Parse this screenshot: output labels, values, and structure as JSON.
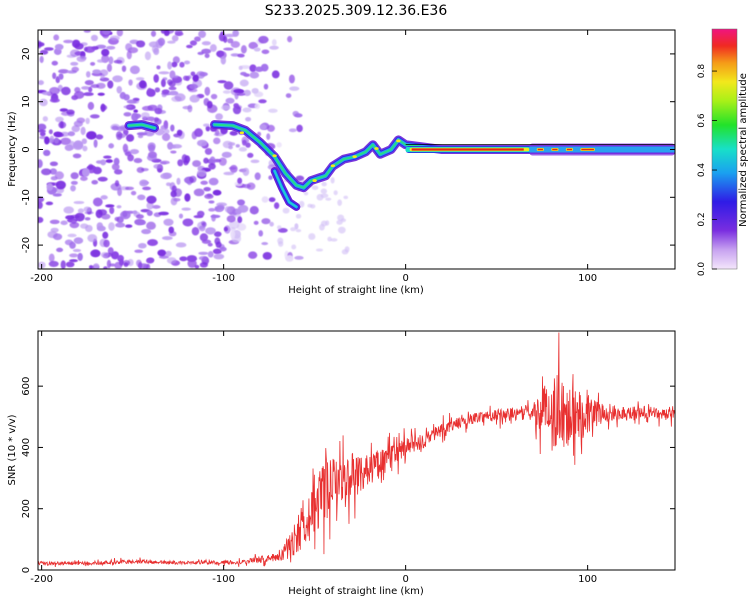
{
  "title": "S233.2025.309.12.36.E36",
  "colors": {
    "snr_line": "#e83030",
    "axis": "#000000",
    "spectro_low": "#7a2ee0",
    "spectro_ridge_edge": "#2a9cf0",
    "spectro_ridge_core": "#e0281c"
  },
  "chart_data": [
    {
      "type": "heatmap",
      "name": "spectrogram",
      "xlabel": "Height of straight line (km)",
      "ylabel": "Frequency (Hz)",
      "xlim": [
        -202,
        148
      ],
      "ylim": [
        -25,
        25
      ],
      "xticks": [
        -200,
        -100,
        0,
        100
      ],
      "xtick_labels": [
        "-200",
        "-100",
        "0",
        "100"
      ],
      "yticks": [
        20,
        10,
        0,
        -10,
        -20
      ],
      "ytick_labels": [
        "20",
        "10",
        "0",
        "-10",
        "-20"
      ],
      "ridge": {
        "x": [
          -152,
          -145,
          -138,
          -105,
          -95,
          -88,
          -80,
          -72,
          -66,
          -60,
          -56,
          -52,
          -48,
          -44,
          -40,
          -34,
          -28,
          -22,
          -18,
          -14,
          -8,
          -4,
          0,
          20,
          60,
          100,
          148
        ],
        "freq": [
          5.0,
          5.2,
          4.5,
          5.2,
          5.0,
          4.0,
          1.5,
          -1.5,
          -5.0,
          -7.5,
          -8.0,
          -6.5,
          -6.0,
          -5.5,
          -3.5,
          -2.0,
          -1.5,
          -0.5,
          1.0,
          -1.0,
          0.0,
          2.0,
          1.0,
          0.0,
          0.0,
          0.0,
          0.0
        ]
      },
      "branch": {
        "x": [
          -72,
          -68,
          -64,
          -60
        ],
        "freq": [
          -4.5,
          -8.0,
          -11.0,
          -12.0
        ]
      },
      "colorbar": {
        "label": "Normalized spectral amplitude",
        "range": [
          0.0,
          0.97
        ],
        "ticks": [
          0.0,
          0.2,
          0.4,
          0.6,
          0.8
        ],
        "tick_labels": [
          "0.0",
          "0.2",
          "0.4",
          "0.6",
          "0.8"
        ]
      }
    },
    {
      "type": "line",
      "name": "snr",
      "xlabel": "Height of straight line (km)",
      "ylabel": "SNR (10 * v/v)",
      "xlim": [
        -202,
        148
      ],
      "ylim": [
        0,
        780
      ],
      "xticks": [
        -200,
        -100,
        0,
        100
      ],
      "xtick_labels": [
        "-200",
        "-100",
        "0",
        "100"
      ],
      "yticks": [
        0,
        200,
        400,
        600
      ],
      "ytick_labels": [
        "0",
        "200",
        "400",
        "600"
      ],
      "envelope": {
        "x": [
          -202,
          -170,
          -150,
          -130,
          -110,
          -90,
          -80,
          -72,
          -66,
          -60,
          -54,
          -48,
          -40,
          -30,
          -20,
          -10,
          0,
          10,
          20,
          30,
          40,
          60,
          70,
          80,
          90,
          100,
          110,
          130,
          148
        ],
        "mean": [
          22,
          22,
          28,
          24,
          24,
          26,
          35,
          40,
          60,
          110,
          180,
          230,
          280,
          310,
          330,
          360,
          400,
          420,
          460,
          480,
          500,
          510,
          515,
          520,
          520,
          510,
          510,
          515,
          505
        ],
        "spread": [
          8,
          8,
          10,
          8,
          8,
          10,
          15,
          20,
          40,
          90,
          140,
          150,
          120,
          100,
          80,
          60,
          45,
          35,
          30,
          25,
          25,
          30,
          40,
          160,
          200,
          90,
          35,
          30,
          25
        ]
      }
    }
  ]
}
